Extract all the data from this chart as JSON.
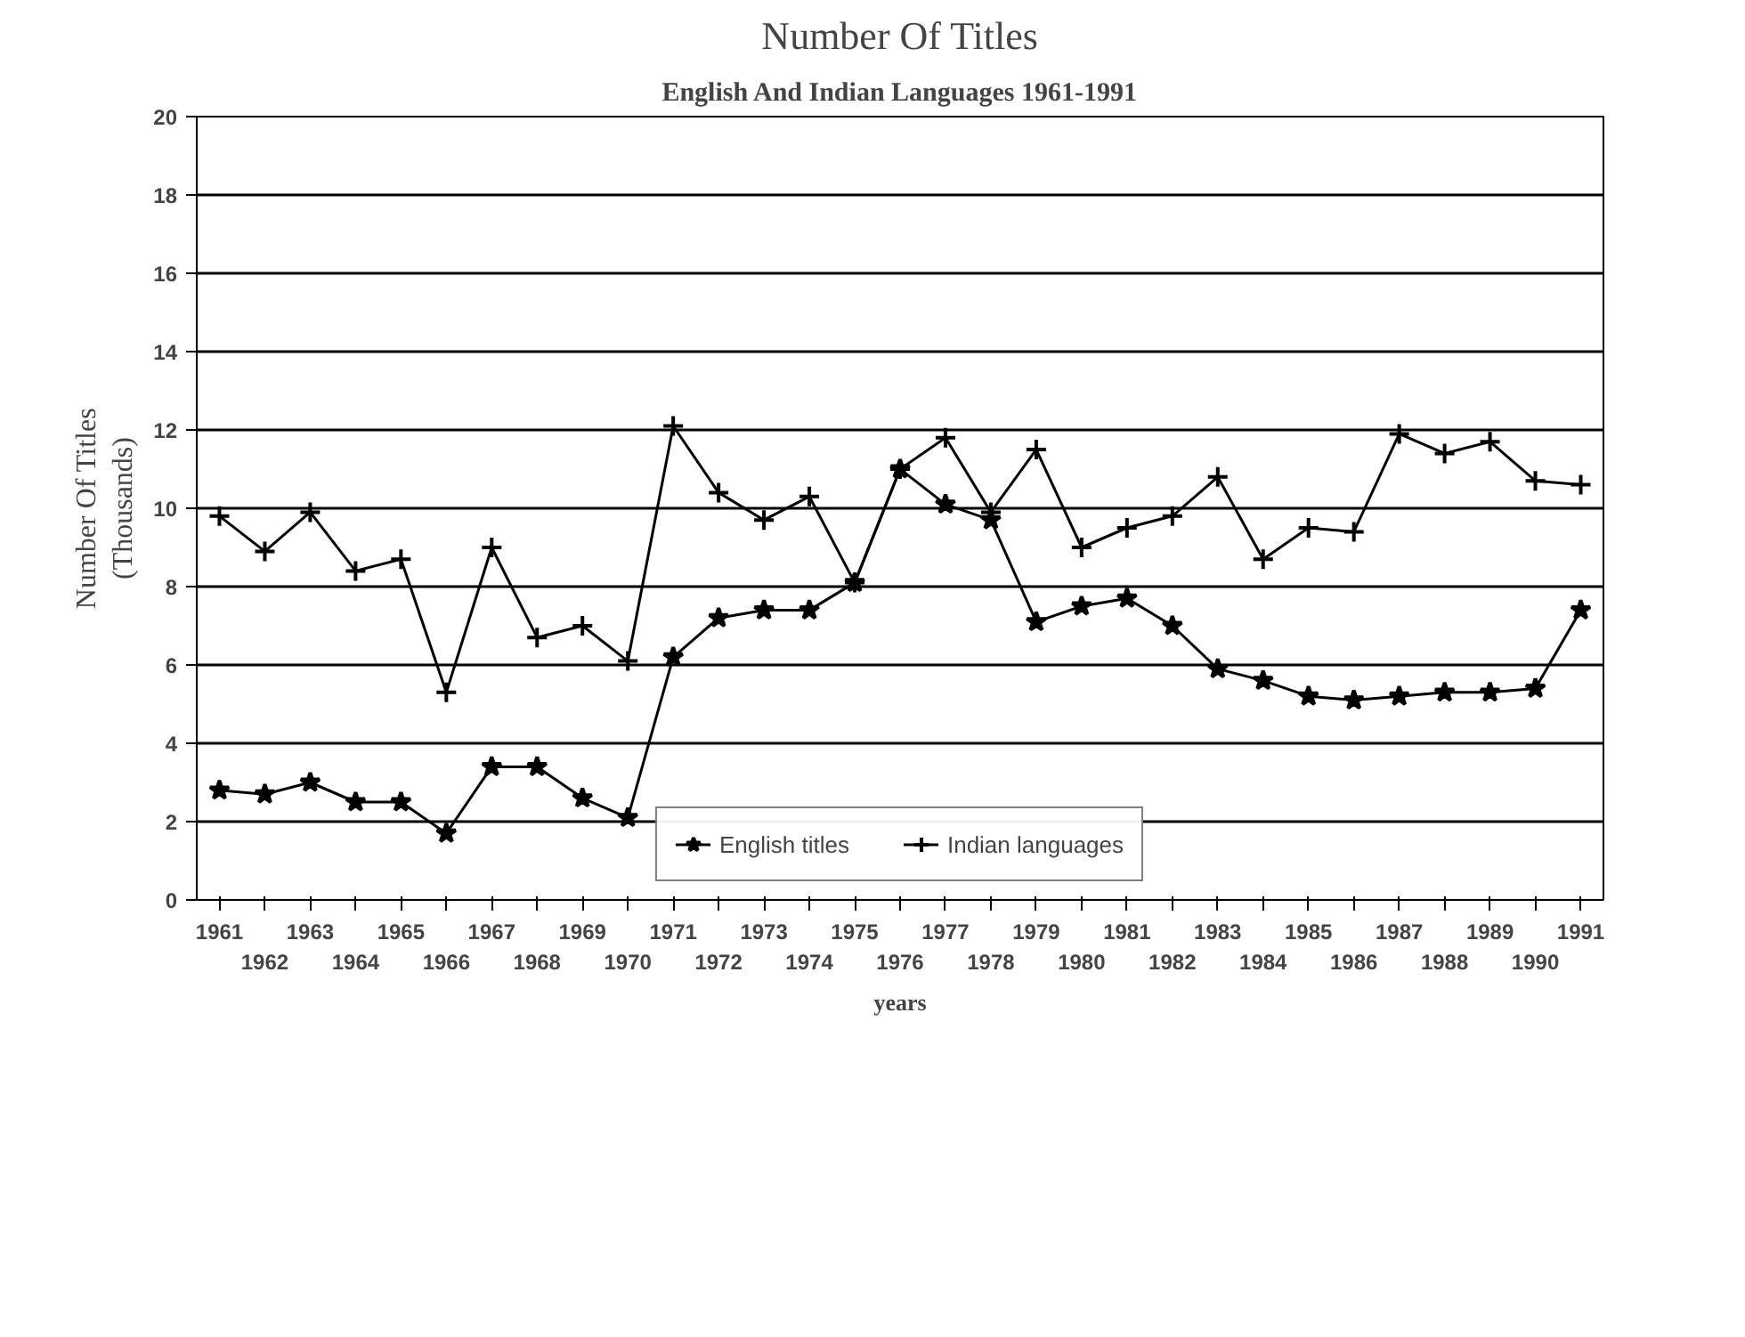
{
  "chart_data": {
    "type": "line",
    "title": "Number Of Titles",
    "subtitle": "English And Indian Languages 1961-1991",
    "xlabel": "years",
    "ylabel": "Number Of Titles\n(Thousands)",
    "categories": [
      "1961",
      "1962",
      "1963",
      "1964",
      "1965",
      "1966",
      "1967",
      "1968",
      "1969",
      "1970",
      "1971",
      "1972",
      "1973",
      "1974",
      "1975",
      "1976",
      "1977",
      "1978",
      "1979",
      "1980",
      "1981",
      "1982",
      "1983",
      "1984",
      "1985",
      "1986",
      "1987",
      "1988",
      "1989",
      "1990",
      "1991"
    ],
    "series": [
      {
        "name": "English titles",
        "color": "#000000",
        "marker": "star",
        "values": [
          2.8,
          2.7,
          3.0,
          2.5,
          2.5,
          1.7,
          3.4,
          3.4,
          2.6,
          2.1,
          6.2,
          7.2,
          7.4,
          7.4,
          8.1,
          11.0,
          10.1,
          9.7,
          7.1,
          7.5,
          7.7,
          7.0,
          5.9,
          5.6,
          5.2,
          5.1,
          5.2,
          5.3,
          5.3,
          5.4,
          7.4
        ]
      },
      {
        "name": "Indian languages",
        "color": "#000000",
        "marker": "cross",
        "values": [
          9.8,
          8.9,
          9.9,
          8.4,
          8.7,
          5.3,
          9.0,
          6.7,
          7.0,
          6.1,
          12.1,
          10.4,
          9.7,
          10.3,
          8.1,
          11.0,
          11.8,
          9.9,
          11.5,
          9.0,
          9.5,
          9.8,
          10.8,
          8.7,
          9.5,
          9.4,
          11.9,
          11.4,
          11.7,
          10.7,
          10.6
        ]
      }
    ],
    "ylim": [
      0,
      20
    ],
    "yticks": [
      0,
      2,
      4,
      6,
      8,
      10,
      12,
      14,
      16,
      18,
      20
    ],
    "grid": "y",
    "legend": "bottom",
    "line_style": "solid"
  }
}
